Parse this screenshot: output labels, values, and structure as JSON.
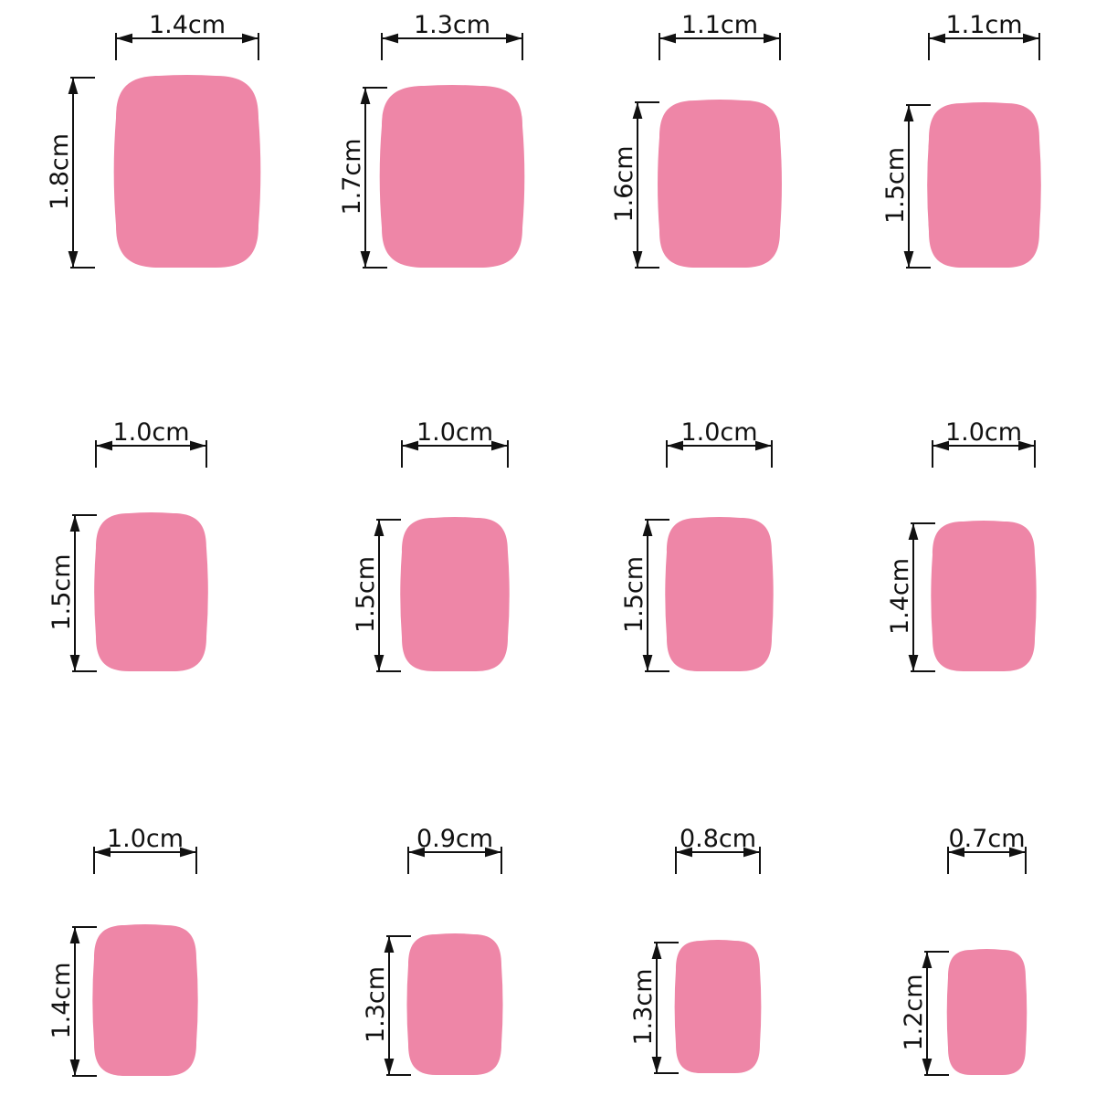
{
  "nails": [
    {
      "width": "1.4cm",
      "height": "1.8cm"
    },
    {
      "width": "1.3cm",
      "height": "1.7cm"
    },
    {
      "width": "1.1cm",
      "height": "1.6cm"
    },
    {
      "width": "1.1cm",
      "height": "1.5cm"
    },
    {
      "width": "1.0cm",
      "height": "1.5cm"
    },
    {
      "width": "1.0cm",
      "height": "1.5cm"
    },
    {
      "width": "1.0cm",
      "height": "1.5cm"
    },
    {
      "width": "1.0cm",
      "height": "1.4cm"
    },
    {
      "width": "1.0cm",
      "height": "1.4cm"
    },
    {
      "width": "0.9cm",
      "height": "1.3cm"
    },
    {
      "width": "0.8cm",
      "height": "1.3cm"
    },
    {
      "width": "0.7cm",
      "height": "1.2cm"
    }
  ]
}
